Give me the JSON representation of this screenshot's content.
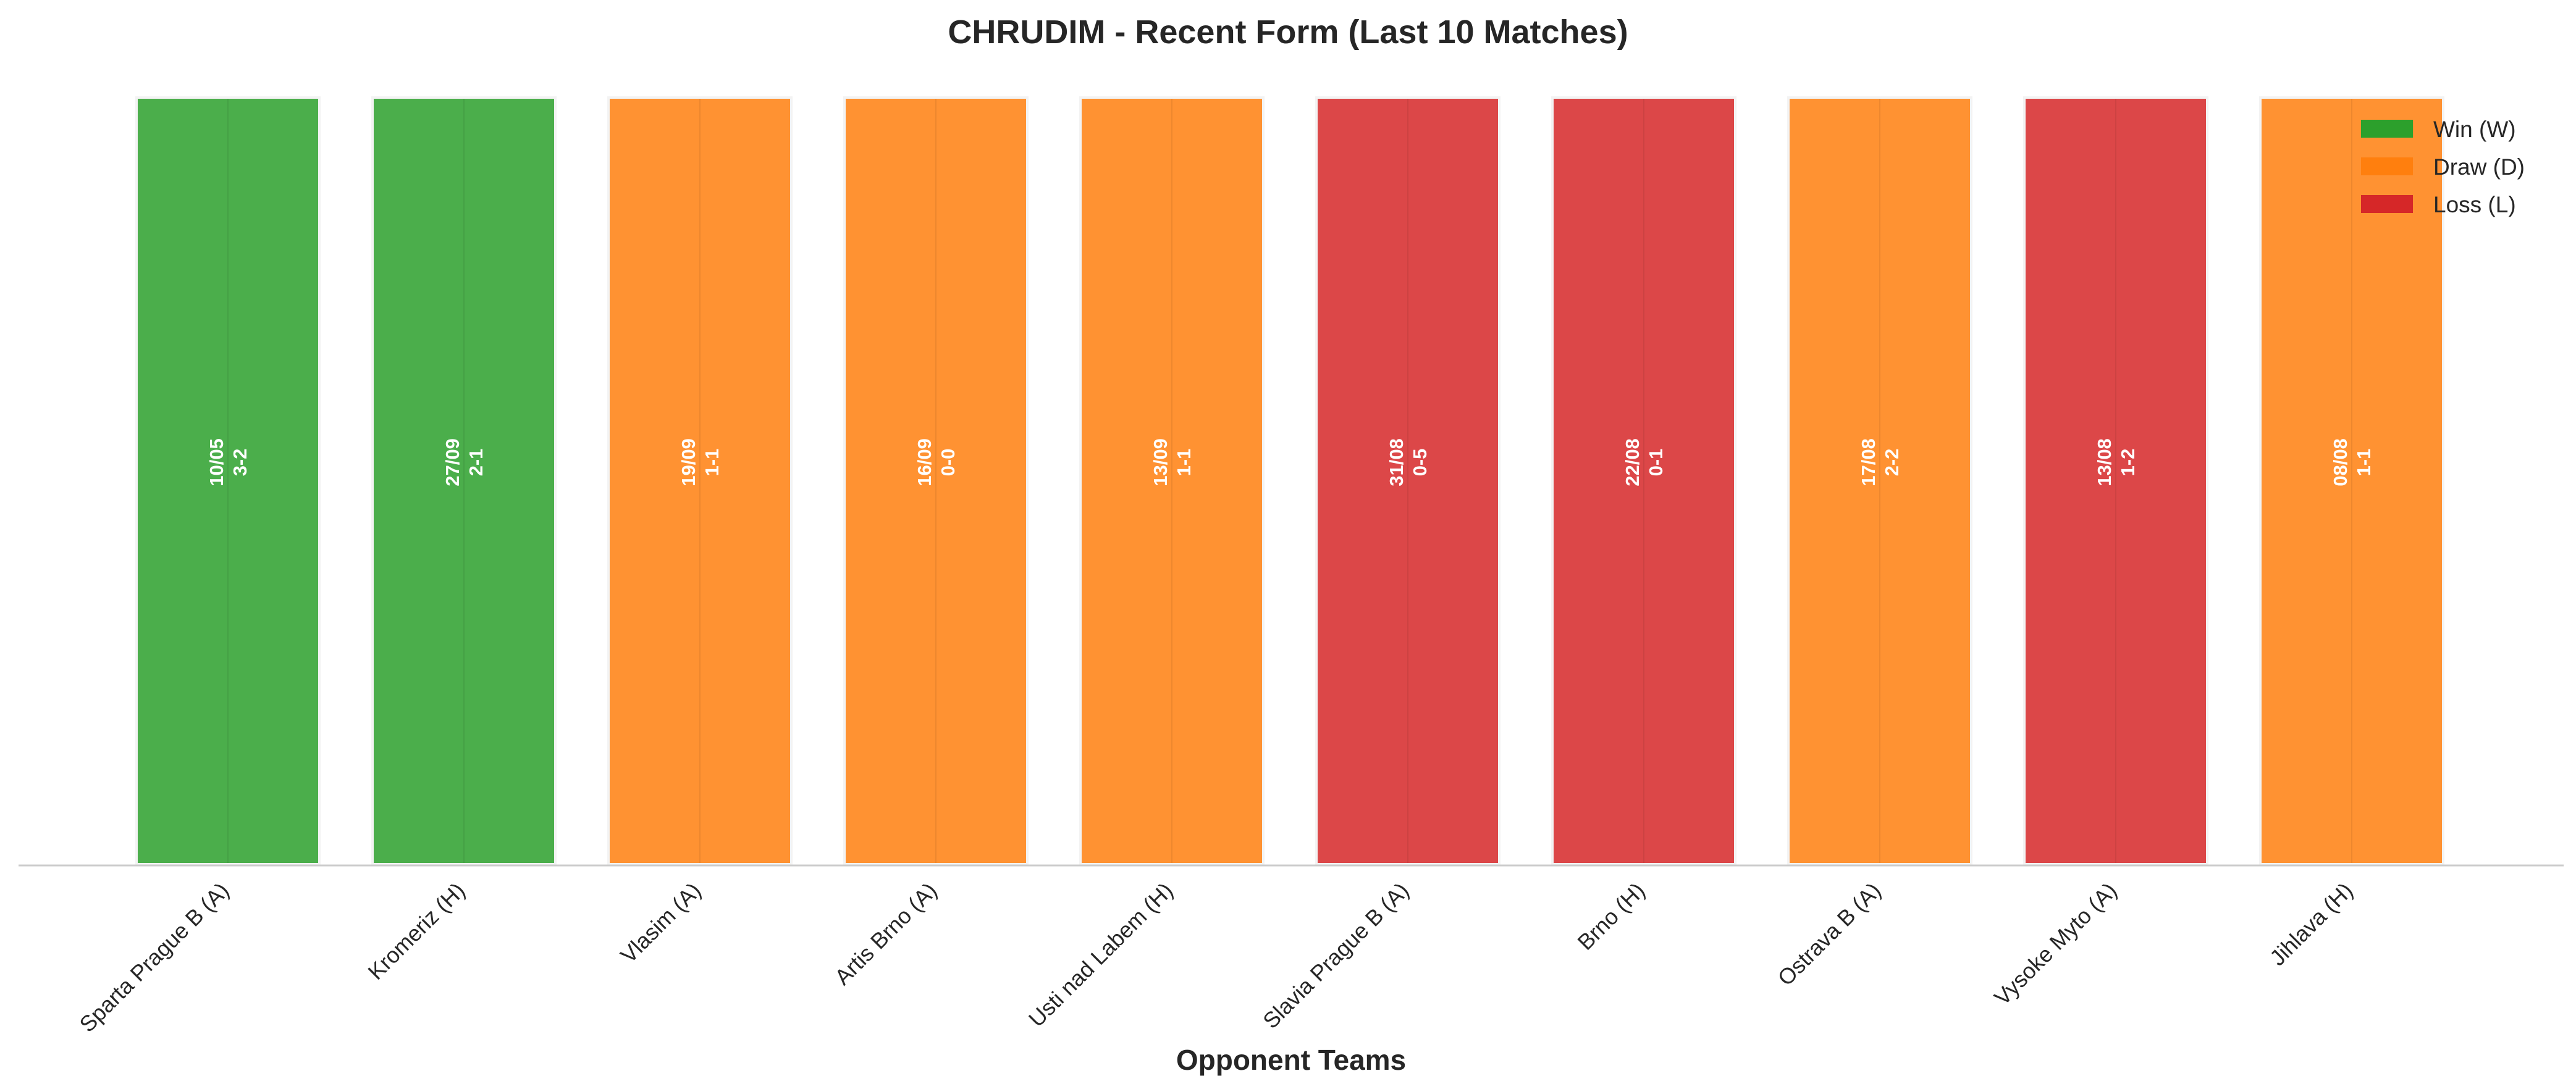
{
  "chart_data": {
    "type": "bar",
    "title": "CHRUDIM - Recent Form (Last 10 Matches)",
    "xlabel": "Opponent Teams",
    "ylabel": "",
    "ylim": [
      0,
      1
    ],
    "grid": false,
    "legend_position": "top-right",
    "categories": [
      "Sparta Prague B (A)",
      "Kromeriz (H)",
      "Vlasim (A)",
      "Artis Brno (A)",
      "Usti nad Labem (H)",
      "Slavia Prague B (A)",
      "Brno (H)",
      "Ostrava B (A)",
      "Vysoke Myto (A)",
      "Jihlava (H)"
    ],
    "values": [
      1,
      1,
      1,
      1,
      1,
      1,
      1,
      1,
      1,
      1
    ],
    "results": [
      "W",
      "W",
      "D",
      "D",
      "D",
      "L",
      "L",
      "D",
      "L",
      "D"
    ],
    "dates": [
      "10/05",
      "27/09",
      "19/09",
      "16/09",
      "13/09",
      "31/08",
      "22/08",
      "17/08",
      "13/08",
      "08/08"
    ],
    "scores": [
      "3-2",
      "2-1",
      "1-1",
      "0-0",
      "1-1",
      "0-5",
      "0-1",
      "2-2",
      "1-2",
      "1-1"
    ],
    "legend": [
      {
        "key": "W",
        "label": "Win (W)",
        "color": "#2ca02c"
      },
      {
        "key": "D",
        "label": "Draw (D)",
        "color": "#ff7f0e"
      },
      {
        "key": "L",
        "label": "Loss (L)",
        "color": "#d62728"
      }
    ]
  }
}
